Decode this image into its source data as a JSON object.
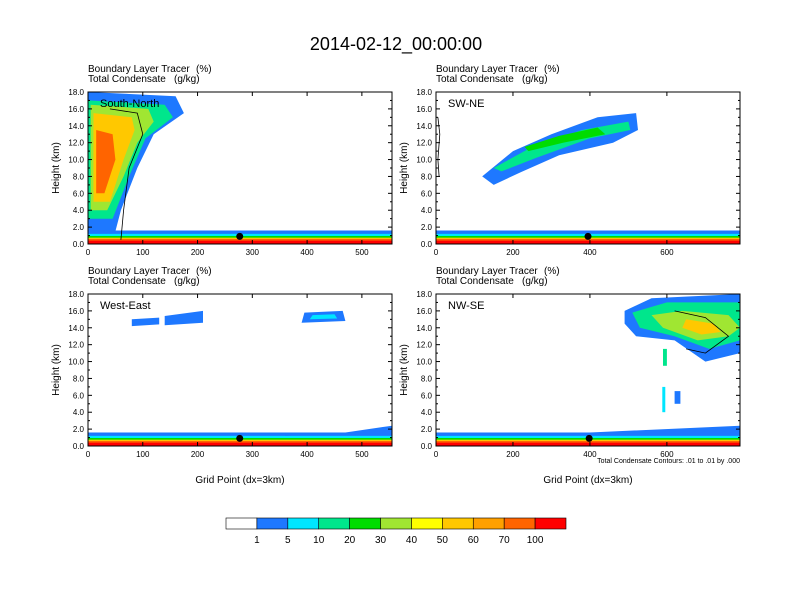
{
  "title": "2014-02-12_00:00:00",
  "header_left_line1": "Boundary Layer Tracer",
  "header_right_line1": "(%)",
  "header_left_line2": "Total Condensate",
  "header_right_line2": "(g/kg)",
  "ylabel": "Height (km)",
  "xlabel": "Grid Point (dx=3km)",
  "contour_note": "Total Condensate Contours: .01 to .01 by .000",
  "colors": {
    "bg": "#ffffff",
    "c1": "#1e78ff",
    "c2": "#00e6ff",
    "c3": "#00e68c",
    "c4": "#00dc00",
    "c5": "#a0e632",
    "c6": "#ffff00",
    "c7": "#ffc800",
    "c8": "#ffa000",
    "c9": "#ff6400",
    "c10": "#ff0000"
  },
  "chart_data": [
    {
      "type": "heatmap",
      "label": "South-North",
      "title_lines": [
        "Boundary Layer Tracer (%)",
        "Total Condensate (g/kg)"
      ],
      "ylabel": "Height (km)",
      "xlabel": "",
      "xlim": [
        0,
        555
      ],
      "ylim": [
        0,
        18
      ],
      "xticks": [
        0,
        100,
        200,
        300,
        400,
        500
      ],
      "yticks": [
        "0.0",
        "2.0",
        "4.0",
        "6.0",
        "8.0",
        "10.0",
        "12.0",
        "14.0",
        "16.0",
        "18.0"
      ],
      "marker_x": 277
    },
    {
      "type": "heatmap",
      "label": "SW-NE",
      "title_lines": [
        "Boundary Layer Tracer (%)",
        "Total Condensate (g/kg)"
      ],
      "ylabel": "Height (km)",
      "xlabel": "",
      "xlim": [
        0,
        790
      ],
      "ylim": [
        0,
        18
      ],
      "xticks": [
        0,
        200,
        400,
        600
      ],
      "yticks": [
        "0.0",
        "2.0",
        "4.0",
        "6.0",
        "8.0",
        "10.0",
        "12.0",
        "14.0",
        "16.0",
        "18.0"
      ],
      "marker_x": 395
    },
    {
      "type": "heatmap",
      "label": "West-East",
      "title_lines": [
        "Boundary Layer Tracer (%)",
        "Total Condensate (g/kg)"
      ],
      "ylabel": "Height (km)",
      "xlabel": "Grid Point (dx=3km)",
      "xlim": [
        0,
        555
      ],
      "ylim": [
        0,
        18
      ],
      "xticks": [
        0,
        100,
        200,
        300,
        400,
        500
      ],
      "yticks": [
        "0.0",
        "2.0",
        "4.0",
        "6.0",
        "8.0",
        "10.0",
        "12.0",
        "14.0",
        "16.0",
        "18.0"
      ],
      "marker_x": 277
    },
    {
      "type": "heatmap",
      "label": "NW-SE",
      "title_lines": [
        "Boundary Layer Tracer (%)",
        "Total Condensate (g/kg)"
      ],
      "ylabel": "Height (km)",
      "xlabel": "Grid Point (dx=3km)",
      "xlim": [
        0,
        790
      ],
      "ylim": [
        0,
        18
      ],
      "xticks": [
        0,
        200,
        400,
        600
      ],
      "yticks": [
        "0.0",
        "2.0",
        "4.0",
        "6.0",
        "8.0",
        "10.0",
        "12.0",
        "14.0",
        "16.0",
        "18.0"
      ],
      "marker_x": 398
    }
  ],
  "colorbar": {
    "labels": [
      "1",
      "5",
      "10",
      "20",
      "30",
      "40",
      "50",
      "60",
      "70",
      "100"
    ],
    "colors": [
      "#ffffff",
      "#1e78ff",
      "#00e6ff",
      "#00e68c",
      "#00dc00",
      "#a0e632",
      "#ffff00",
      "#ffc800",
      "#ffa000",
      "#ff6400",
      "#ff0000"
    ]
  }
}
